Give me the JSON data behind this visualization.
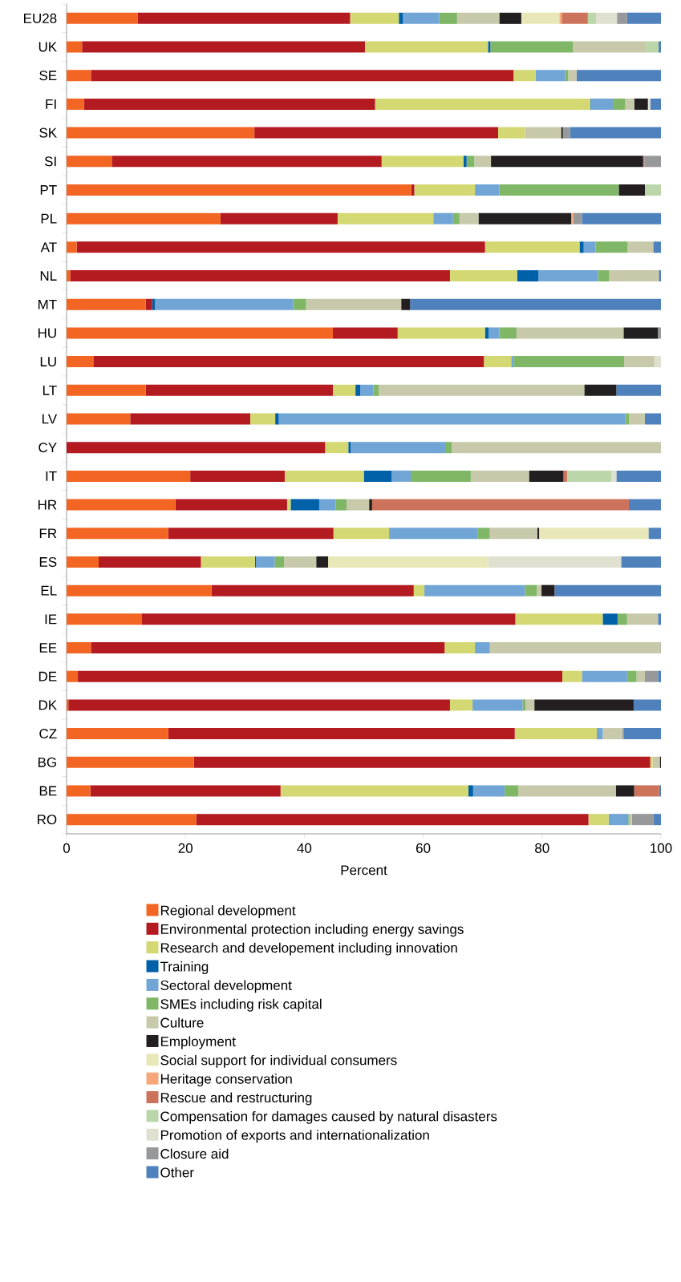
{
  "chart_data": {
    "type": "bar",
    "orientation": "horizontal",
    "stacked": true,
    "xlabel": "Percent",
    "xlim": [
      0,
      100
    ],
    "xticks": [
      0,
      20,
      40,
      60,
      80,
      100
    ],
    "legend": "bottom",
    "categories": [
      "EU28",
      "UK",
      "SE",
      "FI",
      "SK",
      "SI",
      "PT",
      "PL",
      "AT",
      "NL",
      "MT",
      "HU",
      "LU",
      "LT",
      "LV",
      "CY",
      "IT",
      "HR",
      "FR",
      "ES",
      "EL",
      "IE",
      "EE",
      "DE",
      "DK",
      "CZ",
      "BG",
      "BE",
      "RO"
    ],
    "series": [
      {
        "name": "Regional development",
        "color": "#f26522",
        "values": [
          12.0,
          2.6,
          4.1,
          2.9,
          31.6,
          7.6,
          58.0,
          25.9,
          1.7,
          0.6,
          13.3,
          44.8,
          4.5,
          13.3,
          10.7,
          null,
          20.8,
          18.3,
          17.1,
          5.4,
          24.4,
          12.6,
          4.1,
          1.9,
          0.3,
          17.1,
          21.4,
          4.0,
          21.8
        ]
      },
      {
        "name": "Environmental protection including energy savings",
        "color": "#b31b21",
        "values": [
          35.7,
          47.6,
          71.1,
          49.0,
          41.0,
          45.4,
          0.5,
          19.7,
          68.7,
          63.9,
          1.1,
          10.9,
          65.7,
          31.5,
          20.2,
          43.5,
          15.9,
          18.8,
          27.8,
          17.2,
          34.0,
          62.9,
          59.5,
          81.5,
          64.2,
          58.3,
          76.8,
          32.0,
          66.0
        ]
      },
      {
        "name": "Research and developement including innovation",
        "color": "#d4d873",
        "values": [
          8.2,
          20.7,
          3.7,
          36.2,
          4.5,
          13.8,
          10.2,
          16.1,
          15.9,
          11.3,
          null,
          14.7,
          4.6,
          3.8,
          4.2,
          3.9,
          13.3,
          0.6,
          9.4,
          9.1,
          1.8,
          14.7,
          5.1,
          3.3,
          3.8,
          13.8,
          0.4,
          31.6,
          3.4
        ]
      },
      {
        "name": "Training",
        "color": "#0060a8",
        "values": [
          0.7,
          0.4,
          null,
          0.1,
          null,
          0.5,
          null,
          null,
          0.7,
          3.6,
          0.5,
          0.6,
          null,
          0.8,
          0.6,
          0.4,
          4.7,
          4.8,
          0.1,
          0.2,
          null,
          2.5,
          null,
          null,
          null,
          null,
          null,
          0.8,
          null
        ]
      },
      {
        "name": "Sectoral development",
        "color": "#71a5d6",
        "values": [
          6.1,
          null,
          5.0,
          3.7,
          null,
          null,
          4.1,
          3.3,
          2.0,
          10.0,
          23.2,
          1.8,
          0.4,
          2.2,
          58.3,
          15.9,
          3.2,
          2.8,
          14.8,
          3.1,
          16.9,
          null,
          2.5,
          7.6,
          8.4,
          1.0,
          null,
          5.3,
          3.3
        ]
      },
      {
        "name": "SMEs including risk capital",
        "color": "#7fb767",
        "values": [
          3.0,
          13.9,
          0.5,
          2.1,
          null,
          1.3,
          20.1,
          1.1,
          5.4,
          1.9,
          2.2,
          2.9,
          18.6,
          0.9,
          0.6,
          1.1,
          10.1,
          1.8,
          2.0,
          1.6,
          2.0,
          1.6,
          null,
          1.6,
          0.5,
          null,
          null,
          2.3,
          0.2
        ]
      },
      {
        "name": "Culture",
        "color": "#c8c9ab",
        "values": [
          7.1,
          12.1,
          1.4,
          1.5,
          6.1,
          2.8,
          null,
          3.2,
          4.3,
          8.3,
          16.0,
          18.0,
          5.1,
          34.6,
          2.7,
          35.2,
          9.8,
          3.8,
          8.0,
          5.4,
          0.8,
          5.2,
          28.7,
          1.4,
          1.5,
          3.3,
          1.2,
          16.4,
          0.4
        ]
      },
      {
        "name": "Employment",
        "color": "#231f20",
        "values": [
          3.7,
          null,
          null,
          2.3,
          0.3,
          25.6,
          4.4,
          15.6,
          null,
          null,
          1.5,
          5.8,
          null,
          5.4,
          null,
          null,
          5.8,
          0.5,
          0.3,
          2.0,
          2.2,
          null,
          null,
          null,
          16.7,
          null,
          0.2,
          3.1,
          null
        ]
      },
      {
        "name": "Social support for individual consumers",
        "color": "#e8e7b7",
        "values": [
          6.4,
          null,
          null,
          null,
          null,
          null,
          null,
          null,
          null,
          null,
          null,
          null,
          null,
          null,
          null,
          null,
          null,
          null,
          18.4,
          26.9,
          null,
          null,
          null,
          null,
          null,
          null,
          null,
          null,
          null
        ]
      },
      {
        "name": "Heritage conservation",
        "color": "#f7a67a",
        "values": [
          0.4,
          null,
          null,
          null,
          null,
          null,
          null,
          0.3,
          null,
          null,
          null,
          null,
          null,
          null,
          null,
          null,
          null,
          null,
          null,
          null,
          null,
          null,
          null,
          null,
          null,
          null,
          null,
          null,
          null
        ]
      },
      {
        "name": "Rescue and restructuring",
        "color": "#cd735c",
        "values": [
          4.4,
          null,
          null,
          null,
          null,
          0.2,
          null,
          null,
          null,
          null,
          null,
          null,
          null,
          null,
          null,
          null,
          0.6,
          43.2,
          null,
          null,
          null,
          null,
          null,
          null,
          null,
          null,
          null,
          4.2,
          null
        ]
      },
      {
        "name": "Compensation for damages caused by natural disasters",
        "color": "#bbd7aa",
        "values": [
          1.4,
          2.3,
          null,
          null,
          null,
          null,
          2.7,
          null,
          null,
          null,
          null,
          null,
          null,
          null,
          null,
          null,
          7.5,
          null,
          null,
          null,
          null,
          null,
          null,
          null,
          null,
          null,
          null,
          null,
          null
        ]
      },
      {
        "name": "Promotion of exports and internationalization",
        "color": "#e0e0d1",
        "values": [
          3.5,
          null,
          null,
          0.4,
          null,
          null,
          null,
          null,
          null,
          null,
          null,
          null,
          1.1,
          null,
          null,
          null,
          0.8,
          null,
          null,
          22.4,
          null,
          null,
          null,
          null,
          null,
          null,
          null,
          null,
          null
        ]
      },
      {
        "name": "Closure aid",
        "color": "#97989a",
        "values": [
          1.7,
          null,
          null,
          null,
          1.2,
          2.8,
          null,
          1.5,
          null,
          0.1,
          null,
          0.5,
          null,
          null,
          null,
          null,
          null,
          null,
          null,
          null,
          null,
          null,
          0.1,
          2.2,
          null,
          0.2,
          null,
          null,
          3.6
        ]
      },
      {
        "name": "Other",
        "color": "#4f81bd",
        "values": [
          5.7,
          0.4,
          14.2,
          1.8,
          15.3,
          null,
          null,
          13.3,
          1.3,
          0.3,
          42.2,
          null,
          null,
          7.5,
          2.7,
          null,
          7.5,
          5.4,
          2.1,
          6.7,
          17.9,
          0.5,
          null,
          0.5,
          4.6,
          6.3,
          null,
          0.3,
          1.3
        ]
      }
    ]
  }
}
